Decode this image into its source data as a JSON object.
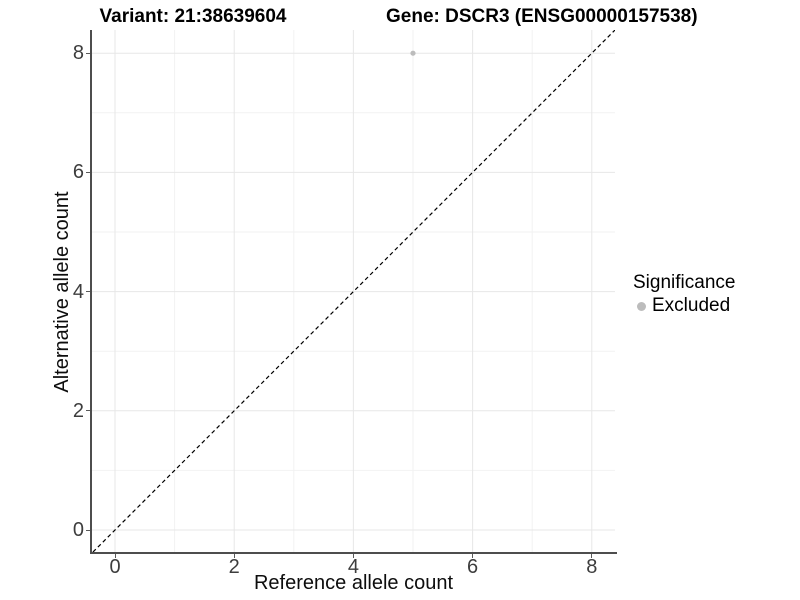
{
  "titles": {
    "variant": "Variant: 21:38639604",
    "gene": "Gene: DSCR3 (ENSG00000157538)"
  },
  "chart_data": {
    "type": "scatter",
    "title_left": "Variant: 21:38639604",
    "title_right": "Gene: DSCR3 (ENSG00000157538)",
    "xlabel": "Reference allele count",
    "ylabel": "Alternative allele count",
    "xlim": [
      -0.39,
      8.39
    ],
    "ylim": [
      -0.37,
      8.39
    ],
    "x_ticks": [
      0,
      2,
      4,
      6,
      8
    ],
    "y_ticks": [
      0,
      2,
      4,
      6,
      8
    ],
    "x_minor_ticks": [
      1,
      3,
      5,
      7
    ],
    "y_minor_ticks": [
      1,
      3,
      5,
      7
    ],
    "grid": "major and minor, light grey, no panel border",
    "series": [
      {
        "name": "Excluded",
        "color": "#bcbcbc",
        "point_radius": 2.6,
        "points": [
          {
            "x": 5,
            "y": 8
          }
        ]
      }
    ],
    "reference_line": {
      "kind": "identity y=x",
      "style": "dashed",
      "color": "#000000",
      "dash": "4 3"
    },
    "legend": {
      "title": "Significance",
      "position": "right",
      "items": [
        {
          "label": "Excluded",
          "color": "#bcbcbc"
        }
      ]
    },
    "colors": {
      "background": "#ffffff",
      "grid_major": "#e7e7e7",
      "grid_minor": "#f2f2f2",
      "axis_line": "#4d4d4d",
      "tick_mark": "#5a5a5a",
      "tick_text": "#3d3d3d",
      "axis_title_text": "#0d0d0d",
      "title_text": "#000000"
    }
  }
}
